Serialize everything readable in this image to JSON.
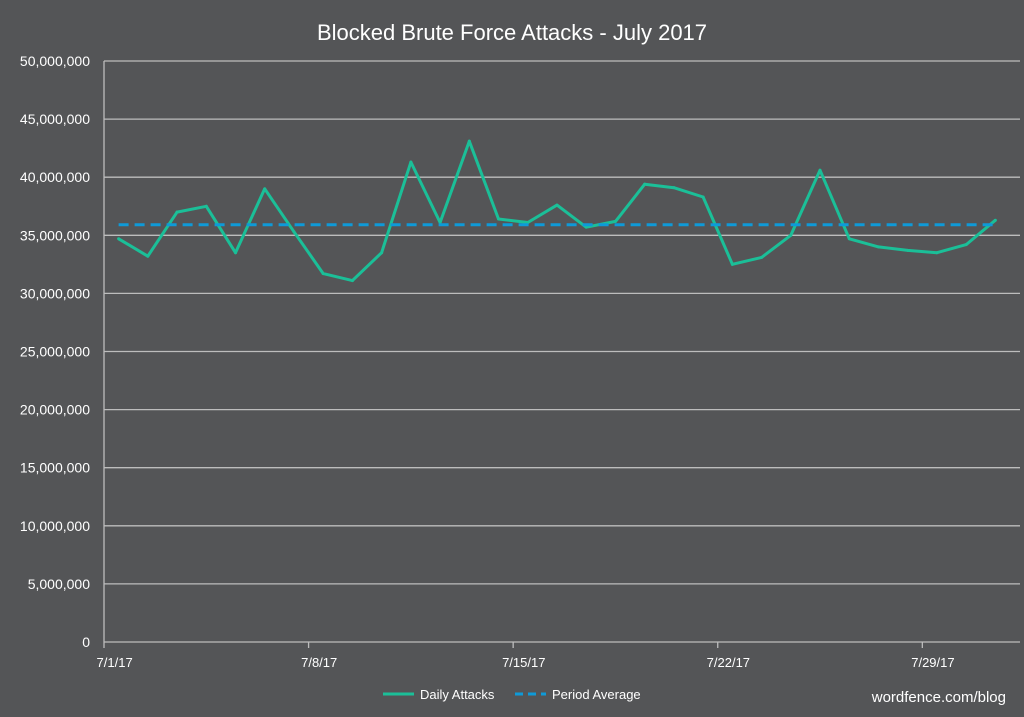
{
  "chart_data": {
    "type": "line",
    "title": "Blocked Brute Force Attacks - July 2017",
    "xlabel": "",
    "ylabel": "",
    "ylim": [
      0,
      50000000
    ],
    "yticks": [
      "0",
      "5,000,000",
      "10,000,000",
      "15,000,000",
      "20,000,000",
      "25,000,000",
      "30,000,000",
      "35,000,000",
      "40,000,000",
      "45,000,000",
      "50,000,000"
    ],
    "ytick_values": [
      0,
      5000000,
      10000000,
      15000000,
      20000000,
      25000000,
      30000000,
      35000000,
      40000000,
      45000000,
      50000000
    ],
    "x": [
      "7/1/17",
      "7/2/17",
      "7/3/17",
      "7/4/17",
      "7/5/17",
      "7/6/17",
      "7/7/17",
      "7/8/17",
      "7/9/17",
      "7/10/17",
      "7/11/17",
      "7/12/17",
      "7/13/17",
      "7/14/17",
      "7/15/17",
      "7/16/17",
      "7/17/17",
      "7/18/17",
      "7/19/17",
      "7/20/17",
      "7/21/17",
      "7/22/17",
      "7/23/17",
      "7/24/17",
      "7/25/17",
      "7/26/17",
      "7/27/17",
      "7/28/17",
      "7/29/17",
      "7/30/17",
      "7/31/17"
    ],
    "xtick_labels": [
      {
        "index": 0,
        "label": "7/1/17"
      },
      {
        "index": 7,
        "label": "7/8/17"
      },
      {
        "index": 14,
        "label": "7/15/17"
      },
      {
        "index": 21,
        "label": "7/22/17"
      },
      {
        "index": 28,
        "label": "7/29/17"
      }
    ],
    "grid": true,
    "legend_position": "bottom",
    "series": [
      {
        "name": "Daily Attacks",
        "color": "#1bbf98",
        "style": "solid",
        "values": [
          34700000,
          33200000,
          37000000,
          37500000,
          33500000,
          39000000,
          35300000,
          31700000,
          31100000,
          33500000,
          41300000,
          36100000,
          43100000,
          36400000,
          36100000,
          37600000,
          35700000,
          36200000,
          39400000,
          39100000,
          38300000,
          32500000,
          33100000,
          35000000,
          40600000,
          34700000,
          34000000,
          33700000,
          33500000,
          34200000,
          36300000
        ]
      },
      {
        "name": "Period Average",
        "color": "#0e9ad8",
        "style": "dashed",
        "values": [
          35900000,
          35900000,
          35900000,
          35900000,
          35900000,
          35900000,
          35900000,
          35900000,
          35900000,
          35900000,
          35900000,
          35900000,
          35900000,
          35900000,
          35900000,
          35900000,
          35900000,
          35900000,
          35900000,
          35900000,
          35900000,
          35900000,
          35900000,
          35900000,
          35900000,
          35900000,
          35900000,
          35900000,
          35900000,
          35900000,
          35900000
        ]
      }
    ]
  },
  "watermark": "wordfence.com/blog"
}
